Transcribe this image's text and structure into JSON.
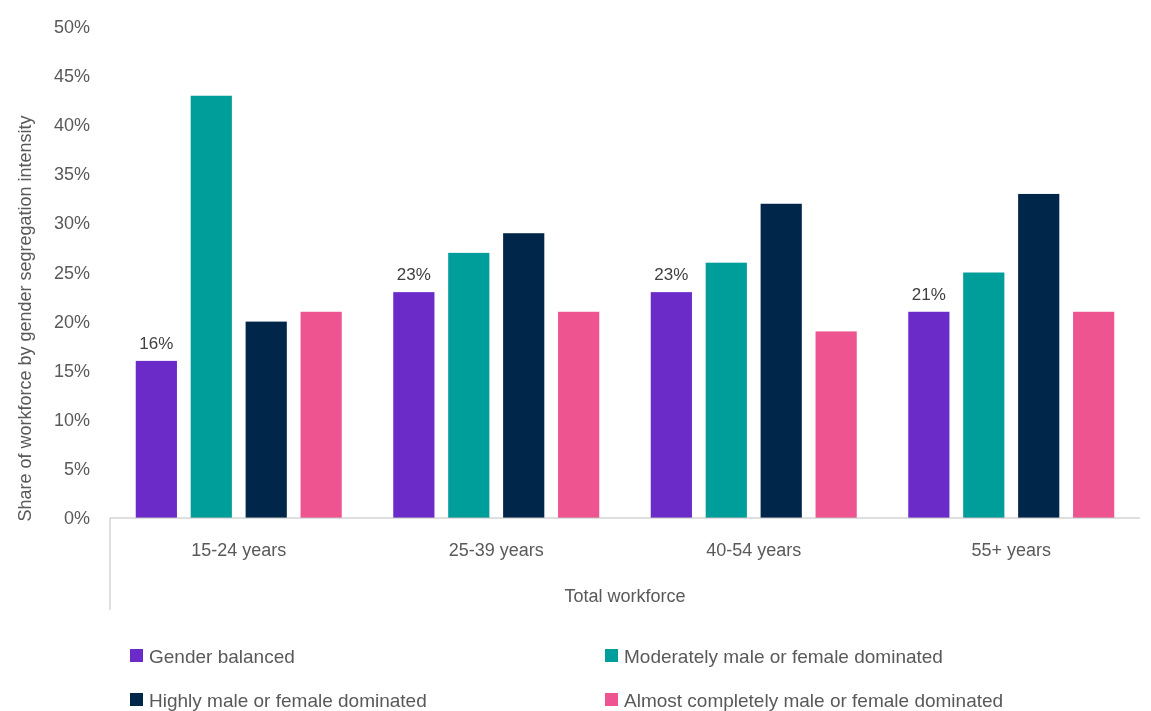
{
  "chart_data": {
    "type": "bar",
    "xlabel": "Total workforce",
    "ylabel": "Share of workforce by gender segregation intensity",
    "categories": [
      "15-24 years",
      "25-39 years",
      "40-54 years",
      "55+ years"
    ],
    "series": [
      {
        "name": "Gender balanced",
        "color": "#6a2bc9",
        "values": [
          16,
          23,
          23,
          21
        ],
        "value_labels": [
          "16%",
          "23%",
          "23%",
          "21%"
        ]
      },
      {
        "name": "Moderately male or female dominated",
        "color": "#009e9a",
        "values": [
          43,
          27,
          26,
          25
        ]
      },
      {
        "name": "Highly male or female dominated",
        "color": "#00264a",
        "values": [
          20,
          29,
          32,
          33
        ]
      },
      {
        "name": "Almost completely male or female dominated",
        "color": "#ee5490",
        "values": [
          21,
          21,
          19,
          21
        ]
      }
    ],
    "ylim": [
      0,
      50
    ],
    "yticks": [
      {
        "value": 0,
        "label": "0%"
      },
      {
        "value": 5,
        "label": "5%"
      },
      {
        "value": 10,
        "label": "10%"
      },
      {
        "value": 15,
        "label": "15%"
      },
      {
        "value": 20,
        "label": "20%"
      },
      {
        "value": 25,
        "label": "25%"
      },
      {
        "value": 30,
        "label": "30%"
      },
      {
        "value": 35,
        "label": "35%"
      },
      {
        "value": 40,
        "label": "40%"
      },
      {
        "value": 45,
        "label": "45%"
      },
      {
        "value": 50,
        "label": "50%"
      }
    ],
    "grid": false,
    "legend": "bottom"
  }
}
